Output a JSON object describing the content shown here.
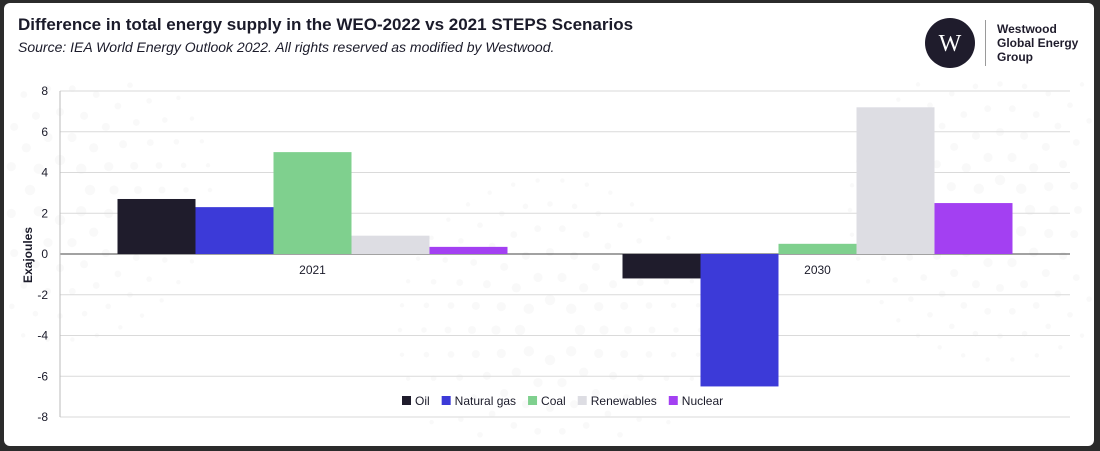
{
  "header": {
    "title": "Difference in total energy supply in the WEO-2022 vs 2021 STEPS Scenarios",
    "subtitle": "Source: IEA World Energy Outlook 2022. All rights reserved as modified by Westwood."
  },
  "brand": {
    "line1": "Westwood",
    "line2": "Global Energy",
    "line3": "Group",
    "logo_letter": "W"
  },
  "chart_data": {
    "type": "bar",
    "categories": [
      "2021",
      "2030"
    ],
    "series": [
      {
        "name": "Oil",
        "values": [
          2.7,
          -1.2
        ],
        "color": "#1f1c2c"
      },
      {
        "name": "Natural gas",
        "values": [
          2.3,
          -6.5
        ],
        "color": "#3c3ad8"
      },
      {
        "name": "Coal",
        "values": [
          5.0,
          0.5
        ],
        "color": "#7fd08e"
      },
      {
        "name": "Renewables",
        "values": [
          0.9,
          7.2
        ],
        "color": "#dddde3"
      },
      {
        "name": "Nuclear",
        "values": [
          0.35,
          2.5
        ],
        "color": "#a340f2"
      }
    ],
    "ylabel": "Exajoules",
    "ylim": [
      -8,
      8
    ],
    "yticks": [
      8,
      6,
      4,
      2,
      0,
      -2,
      -4,
      -6,
      -8
    ],
    "grid": true,
    "legend": "bottom-center"
  }
}
